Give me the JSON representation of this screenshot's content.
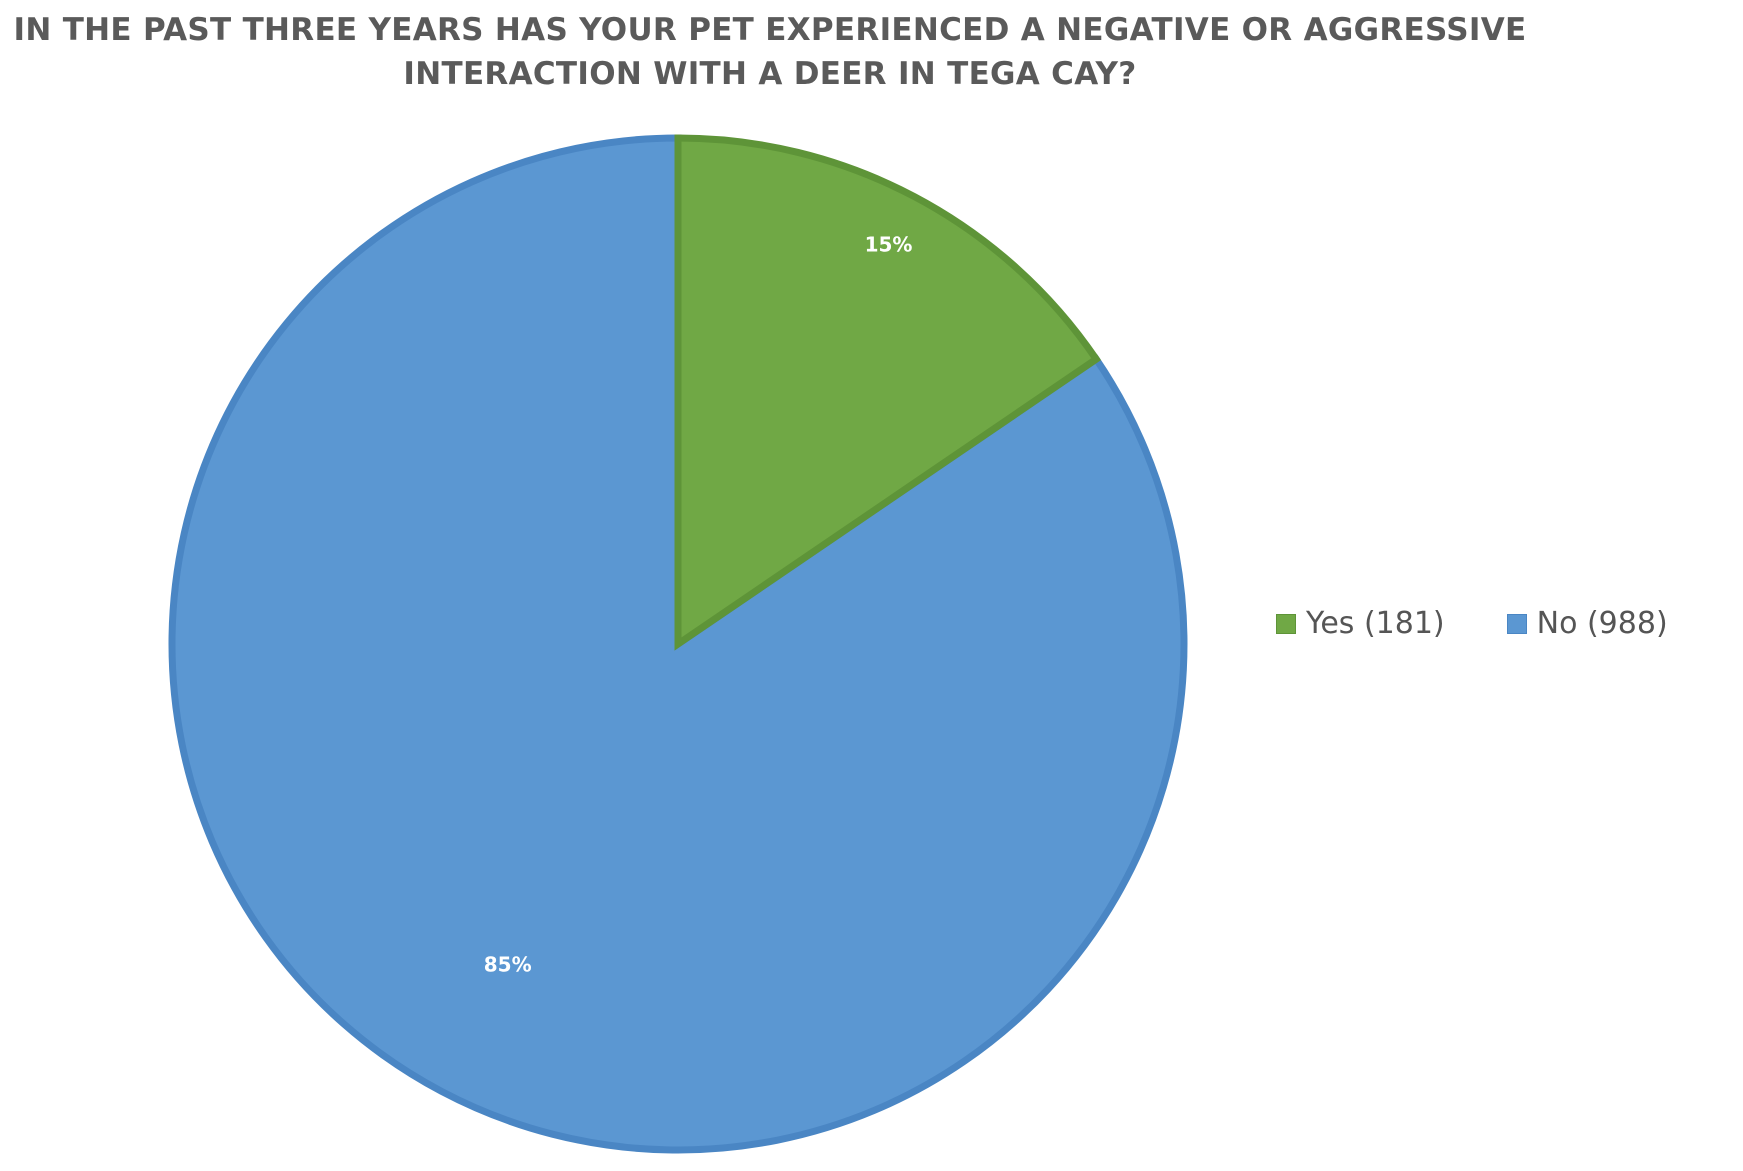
{
  "chart_data": {
    "type": "pie",
    "title_lines": [
      "IN THE PAST THREE YEARS HAS YOUR PET EXPERIENCED A NEGATIVE OR AGGRESSIVE",
      "INTERACTION WITH A DEER IN TEGA CAY?"
    ],
    "slices": [
      {
        "name": "Yes",
        "count": 181,
        "percent_label": "15%",
        "legend_label": "Yes (181)",
        "color": "#70a845",
        "stroke": "#5e9438"
      },
      {
        "name": "No",
        "count": 988,
        "percent_label": "85%",
        "legend_label": "No (988)",
        "color": "#5b97d2",
        "stroke": "#4a86c4"
      }
    ],
    "start_angle_deg": 0,
    "direction": "clockwise",
    "legend_position": "right"
  }
}
